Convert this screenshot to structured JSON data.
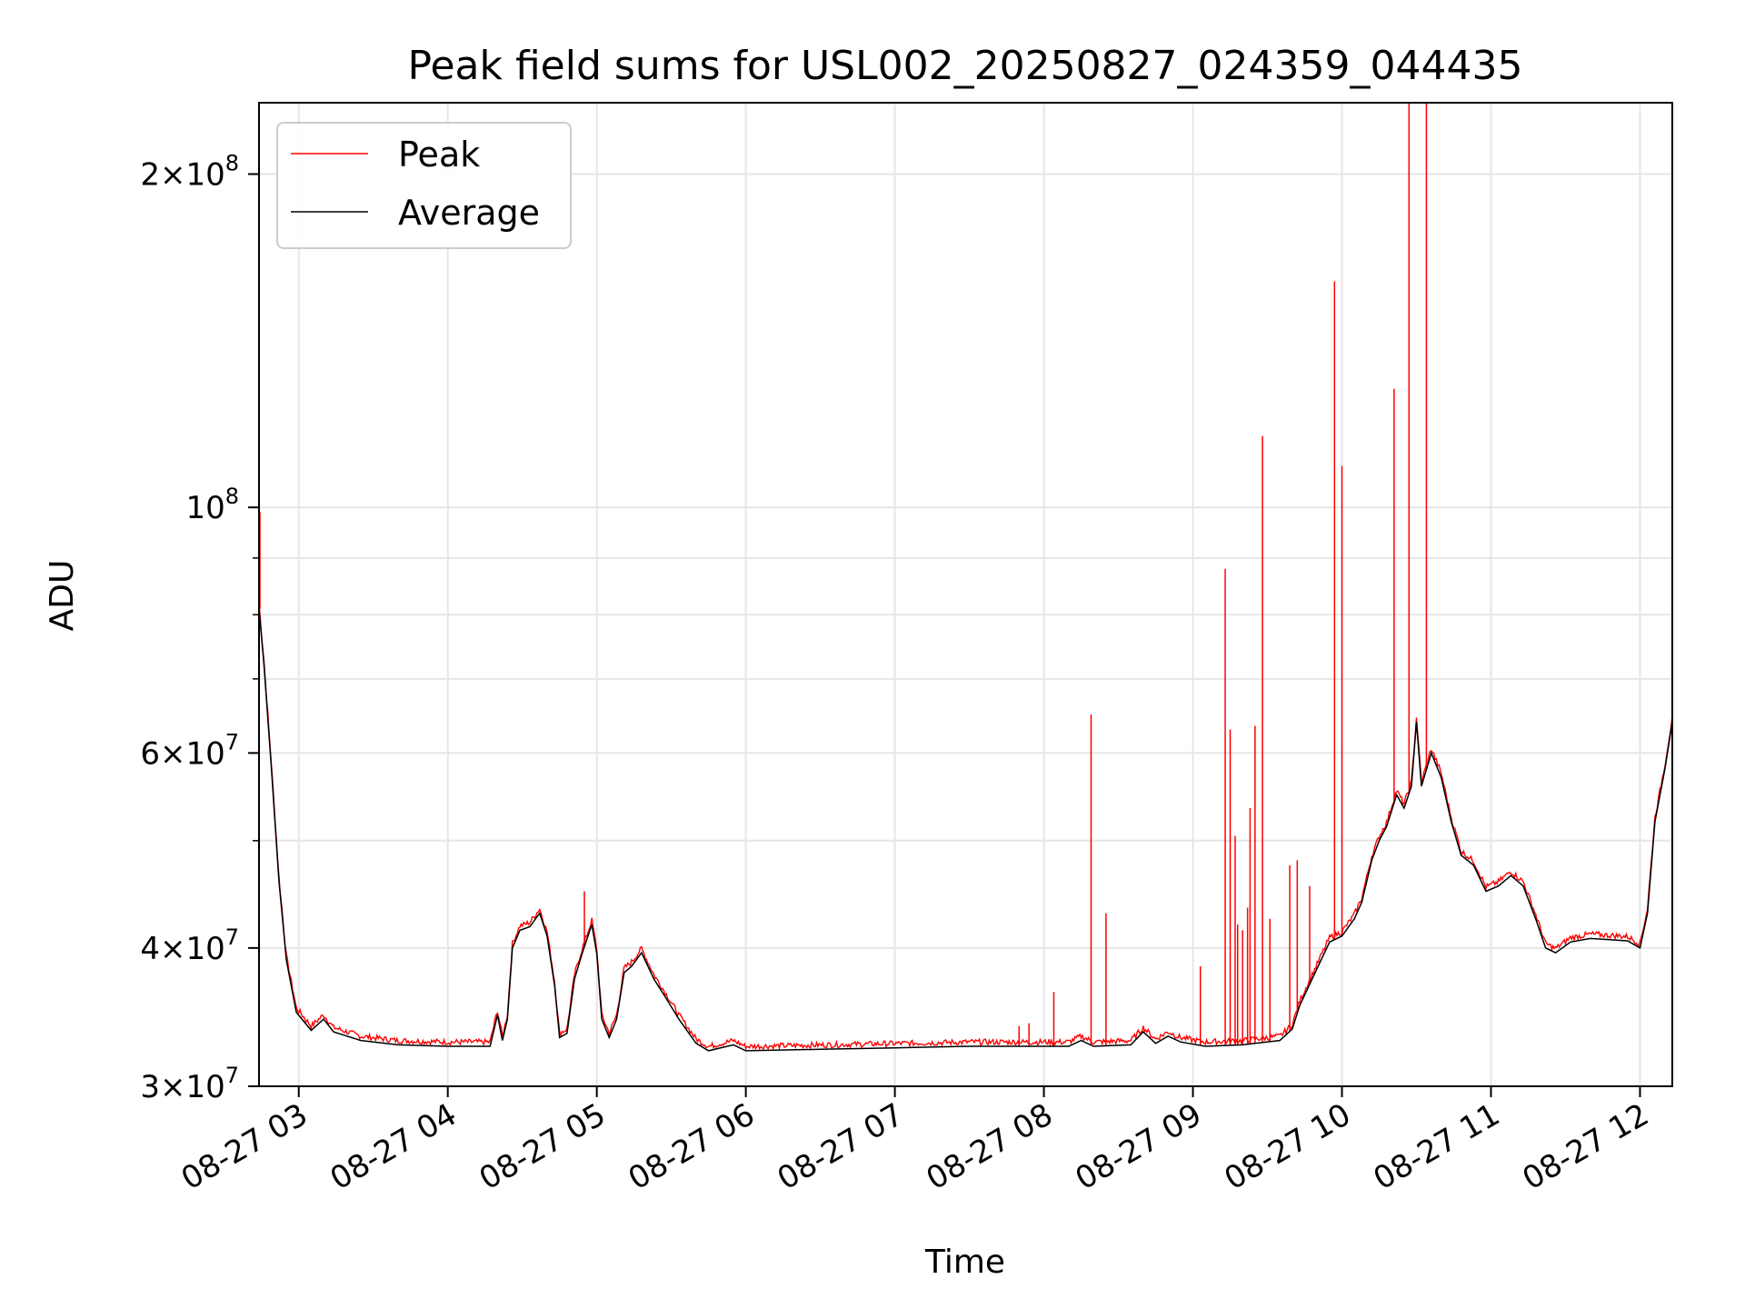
{
  "chart_data": {
    "type": "line",
    "title": "Peak field sums for USL002_20250827_024359_044435",
    "xlabel": "Time",
    "ylabel": "ADU",
    "y_scale": "log",
    "ylim": [
      30000000,
      232000000
    ],
    "xlim": [
      "2025-08-27 02:44",
      "2025-08-27 12:13"
    ],
    "grid": true,
    "legend_position": "top-left",
    "x_ticks": [
      {
        "t": "2025-08-27 03:00",
        "label": "08-27 03"
      },
      {
        "t": "2025-08-27 04:00",
        "label": "08-27 04"
      },
      {
        "t": "2025-08-27 05:00",
        "label": "08-27 05"
      },
      {
        "t": "2025-08-27 06:00",
        "label": "08-27 06"
      },
      {
        "t": "2025-08-27 07:00",
        "label": "08-27 07"
      },
      {
        "t": "2025-08-27 08:00",
        "label": "08-27 08"
      },
      {
        "t": "2025-08-27 09:00",
        "label": "08-27 09"
      },
      {
        "t": "2025-08-27 10:00",
        "label": "08-27 10"
      },
      {
        "t": "2025-08-27 11:00",
        "label": "08-27 11"
      },
      {
        "t": "2025-08-27 12:00",
        "label": "08-27 12"
      }
    ],
    "y_ticks": [
      {
        "value": 30000000,
        "mantissa": "3",
        "exp": "7"
      },
      {
        "value": 40000000,
        "mantissa": "4",
        "exp": "7"
      },
      {
        "value": 60000000,
        "mantissa": "6",
        "exp": "7"
      },
      {
        "value": 100000000,
        "mantissa": "",
        "exp": "8"
      },
      {
        "value": 200000000,
        "mantissa": "2",
        "exp": "8"
      }
    ],
    "y_minor_grid": [
      50000000,
      70000000,
      80000000,
      90000000
    ],
    "series": [
      {
        "name": "Average",
        "color": "#000000",
        "points": [
          [
            "2025-08-27 02:44",
            81000000
          ],
          [
            "2025-08-27 02:46",
            72000000
          ],
          [
            "2025-08-27 02:49",
            58000000
          ],
          [
            "2025-08-27 02:52",
            46000000
          ],
          [
            "2025-08-27 02:55",
            39000000
          ],
          [
            "2025-08-27 02:59",
            35000000
          ],
          [
            "2025-08-27 03:05",
            33700000
          ],
          [
            "2025-08-27 03:10",
            34500000
          ],
          [
            "2025-08-27 03:14",
            33600000
          ],
          [
            "2025-08-27 03:25",
            33000000
          ],
          [
            "2025-08-27 03:40",
            32700000
          ],
          [
            "2025-08-27 04:00",
            32600000
          ],
          [
            "2025-08-27 04:17",
            32600000
          ],
          [
            "2025-08-27 04:20",
            34800000
          ],
          [
            "2025-08-27 04:22",
            33000000
          ],
          [
            "2025-08-27 04:24",
            34500000
          ],
          [
            "2025-08-27 04:26",
            40000000
          ],
          [
            "2025-08-27 04:29",
            41500000
          ],
          [
            "2025-08-27 04:33",
            41800000
          ],
          [
            "2025-08-27 04:37",
            43000000
          ],
          [
            "2025-08-27 04:40",
            41000000
          ],
          [
            "2025-08-27 04:43",
            37000000
          ],
          [
            "2025-08-27 04:45",
            33200000
          ],
          [
            "2025-08-27 04:48",
            33500000
          ],
          [
            "2025-08-27 04:51",
            37500000
          ],
          [
            "2025-08-27 04:54",
            39500000
          ],
          [
            "2025-08-27 04:58",
            42000000
          ],
          [
            "2025-08-27 05:00",
            39500000
          ],
          [
            "2025-08-27 05:02",
            34500000
          ],
          [
            "2025-08-27 05:05",
            33200000
          ],
          [
            "2025-08-27 05:08",
            34500000
          ],
          [
            "2025-08-27 05:11",
            38000000
          ],
          [
            "2025-08-27 05:14",
            38500000
          ],
          [
            "2025-08-27 05:18",
            39600000
          ],
          [
            "2025-08-27 05:23",
            37500000
          ],
          [
            "2025-08-27 05:28",
            36000000
          ],
          [
            "2025-08-27 05:33",
            34500000
          ],
          [
            "2025-08-27 05:40",
            32800000
          ],
          [
            "2025-08-27 05:45",
            32300000
          ],
          [
            "2025-08-27 05:55",
            32700000
          ],
          [
            "2025-08-27 06:00",
            32300000
          ],
          [
            "2025-08-27 06:30",
            32400000
          ],
          [
            "2025-08-27 07:00",
            32500000
          ],
          [
            "2025-08-27 07:30",
            32600000
          ],
          [
            "2025-08-27 08:10",
            32600000
          ],
          [
            "2025-08-27 08:15",
            33000000
          ],
          [
            "2025-08-27 08:20",
            32600000
          ],
          [
            "2025-08-27 08:35",
            32700000
          ],
          [
            "2025-08-27 08:40",
            33600000
          ],
          [
            "2025-08-27 08:45",
            32800000
          ],
          [
            "2025-08-27 08:50",
            33300000
          ],
          [
            "2025-08-27 08:55",
            32900000
          ],
          [
            "2025-08-27 09:05",
            32600000
          ],
          [
            "2025-08-27 09:20",
            32700000
          ],
          [
            "2025-08-27 09:35",
            33000000
          ],
          [
            "2025-08-27 09:40",
            33800000
          ],
          [
            "2025-08-27 09:43",
            35500000
          ],
          [
            "2025-08-27 09:48",
            37500000
          ],
          [
            "2025-08-27 09:55",
            40500000
          ],
          [
            "2025-08-27 10:00",
            41000000
          ],
          [
            "2025-08-27 10:05",
            42500000
          ],
          [
            "2025-08-27 10:08",
            44000000
          ],
          [
            "2025-08-27 10:12",
            48000000
          ],
          [
            "2025-08-27 10:15",
            50000000
          ],
          [
            "2025-08-27 10:18",
            51500000
          ],
          [
            "2025-08-27 10:22",
            55000000
          ],
          [
            "2025-08-27 10:25",
            53500000
          ],
          [
            "2025-08-27 10:28",
            56000000
          ],
          [
            "2025-08-27 10:30",
            64000000
          ],
          [
            "2025-08-27 10:32",
            56000000
          ],
          [
            "2025-08-27 10:36",
            60000000
          ],
          [
            "2025-08-27 10:40",
            57000000
          ],
          [
            "2025-08-27 10:44",
            52000000
          ],
          [
            "2025-08-27 10:48",
            48500000
          ],
          [
            "2025-08-27 10:53",
            47500000
          ],
          [
            "2025-08-27 10:58",
            45000000
          ],
          [
            "2025-08-27 11:03",
            45500000
          ],
          [
            "2025-08-27 11:08",
            46500000
          ],
          [
            "2025-08-27 11:13",
            45500000
          ],
          [
            "2025-08-27 11:18",
            42500000
          ],
          [
            "2025-08-27 11:22",
            40000000
          ],
          [
            "2025-08-27 11:26",
            39600000
          ],
          [
            "2025-08-27 11:32",
            40500000
          ],
          [
            "2025-08-27 11:40",
            40800000
          ],
          [
            "2025-08-27 11:55",
            40600000
          ],
          [
            "2025-08-27 12:00",
            40000000
          ],
          [
            "2025-08-27 12:03",
            43000000
          ],
          [
            "2025-08-27 12:06",
            52000000
          ],
          [
            "2025-08-27 12:10",
            58000000
          ],
          [
            "2025-08-27 12:13",
            64000000
          ]
        ]
      },
      {
        "name": "Peak",
        "color": "#ff0000",
        "spikes": [
          [
            "2025-08-27 04:55",
            45000000
          ],
          [
            "2025-08-27 07:50",
            34000000
          ],
          [
            "2025-08-27 07:54",
            34200000
          ],
          [
            "2025-08-27 08:04",
            36500000
          ],
          [
            "2025-08-27 08:19",
            65000000
          ],
          [
            "2025-08-27 08:25",
            43000000
          ],
          [
            "2025-08-27 09:03",
            38500000
          ],
          [
            "2025-08-27 09:13",
            88000000
          ],
          [
            "2025-08-27 09:15",
            63000000
          ],
          [
            "2025-08-27 09:17",
            50500000
          ],
          [
            "2025-08-27 09:18",
            42000000
          ],
          [
            "2025-08-27 09:20",
            41500000
          ],
          [
            "2025-08-27 09:22",
            43500000
          ],
          [
            "2025-08-27 09:23",
            53500000
          ],
          [
            "2025-08-27 09:25",
            63500000
          ],
          [
            "2025-08-27 09:28",
            116000000
          ],
          [
            "2025-08-27 09:31",
            42500000
          ],
          [
            "2025-08-27 09:39",
            47500000
          ],
          [
            "2025-08-27 09:42",
            48000000
          ],
          [
            "2025-08-27 09:47",
            45500000
          ],
          [
            "2025-08-27 09:57",
            160000000
          ],
          [
            "2025-08-27 10:00",
            109000000
          ],
          [
            "2025-08-27 10:21",
            128000000
          ],
          [
            "2025-08-27 10:27",
            238000000
          ],
          [
            "2025-08-27 10:34",
            238000000
          ]
        ]
      }
    ]
  }
}
